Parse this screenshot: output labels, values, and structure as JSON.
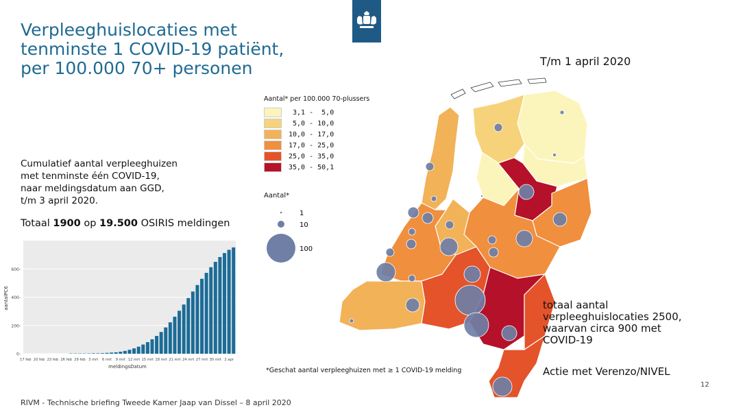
{
  "title": {
    "lines": [
      "Verpleeghuislocaties met",
      "tenminste 1 COVID-19 patiënt,",
      "per 100.000 70+ personen"
    ]
  },
  "date_label": "T/m 1 april 2020",
  "cumulative": {
    "lines": [
      "Cumulatief aantal verpleeghuizen",
      "met tenminste één COVID-19,",
      "naar meldingsdatum aan GGD,",
      "t/m 3 april 2020."
    ]
  },
  "total": {
    "prefix": "Totaal ",
    "count": "1900",
    "middle": " op ",
    "reports": "19.500",
    "suffix": " OSIRIS meldingen"
  },
  "legend": {
    "title": "Aantal* per 100.000 70-plussers",
    "items": [
      {
        "label": " 3,1 -  5,0",
        "color": "#fbf5bb"
      },
      {
        "label": " 5,0 - 10,0",
        "color": "#f6d37a"
      },
      {
        "label": "10,0 - 17,0",
        "color": "#f2b258"
      },
      {
        "label": "17,0 - 25,0",
        "color": "#f08f3d"
      },
      {
        "label": "25,0 - 35,0",
        "color": "#e4532a"
      },
      {
        "label": "35,0 - 50,1",
        "color": "#b5112a"
      }
    ]
  },
  "size_legend": {
    "title": "Aantal*",
    "items": [
      {
        "label": "1"
      },
      {
        "label": "10"
      },
      {
        "label": "100"
      }
    ]
  },
  "right_text": {
    "lines": [
      "totaal aantal",
      "verpleeghuislocaties 2500,",
      "waarvan circa 900 met",
      "COVID-19"
    ]
  },
  "action": "Actie met Verenzo/NIVEL",
  "footnote": "*Geschat aantal verpleeghuizen met ≥ 1 COVID-19 melding",
  "page_number": "12",
  "footer": "RIVM - Technische briefing Tweede Kamer Jaap van Dissel – 8 april 2020",
  "colors": {
    "title": "#1f6a92",
    "bar": "#1c6c97",
    "bubble": "#6f7fa6",
    "logo_bg": "#1f5a86"
  },
  "chart_data": {
    "type": "bar",
    "xlabel": "meldingsDatum",
    "ylabel": "aantalPC6",
    "ylim": [
      0,
      800
    ],
    "yticks": [
      0,
      200,
      400,
      600
    ],
    "xtick_labels": [
      "17 feb",
      "20 feb",
      "23 feb",
      "26 feb",
      "29 feb",
      "3 mrt",
      "6 mrt",
      "9 mrt",
      "12 mrt",
      "15 mrt",
      "18 mrt",
      "21 mrt",
      "24 mrt",
      "27 mrt",
      "30 mrt",
      "2 apr"
    ],
    "categories": [
      "17 feb",
      "18 feb",
      "19 feb",
      "20 feb",
      "21 feb",
      "22 feb",
      "23 feb",
      "24 feb",
      "25 feb",
      "26 feb",
      "27 feb",
      "28 feb",
      "29 feb",
      "1 mrt",
      "2 mrt",
      "3 mrt",
      "4 mrt",
      "5 mrt",
      "6 mrt",
      "7 mrt",
      "8 mrt",
      "9 mrt",
      "10 mrt",
      "11 mrt",
      "12 mrt",
      "13 mrt",
      "14 mrt",
      "15 mrt",
      "16 mrt",
      "17 mrt",
      "18 mrt",
      "19 mrt",
      "20 mrt",
      "21 mrt",
      "22 mrt",
      "23 mrt",
      "24 mrt",
      "25 mrt",
      "26 mrt",
      "27 mrt",
      "28 mrt",
      "29 mrt",
      "30 mrt",
      "31 mrt",
      "1 apr",
      "2 apr",
      "3 apr"
    ],
    "values": [
      0,
      0,
      0,
      0,
      0,
      0,
      0,
      0,
      0,
      0,
      2,
      2,
      2,
      2,
      2,
      3,
      3,
      4,
      6,
      8,
      10,
      14,
      20,
      28,
      38,
      50,
      65,
      82,
      102,
      126,
      154,
      186,
      222,
      262,
      304,
      348,
      394,
      440,
      486,
      530,
      572,
      612,
      650,
      684,
      712,
      735,
      752
    ]
  }
}
